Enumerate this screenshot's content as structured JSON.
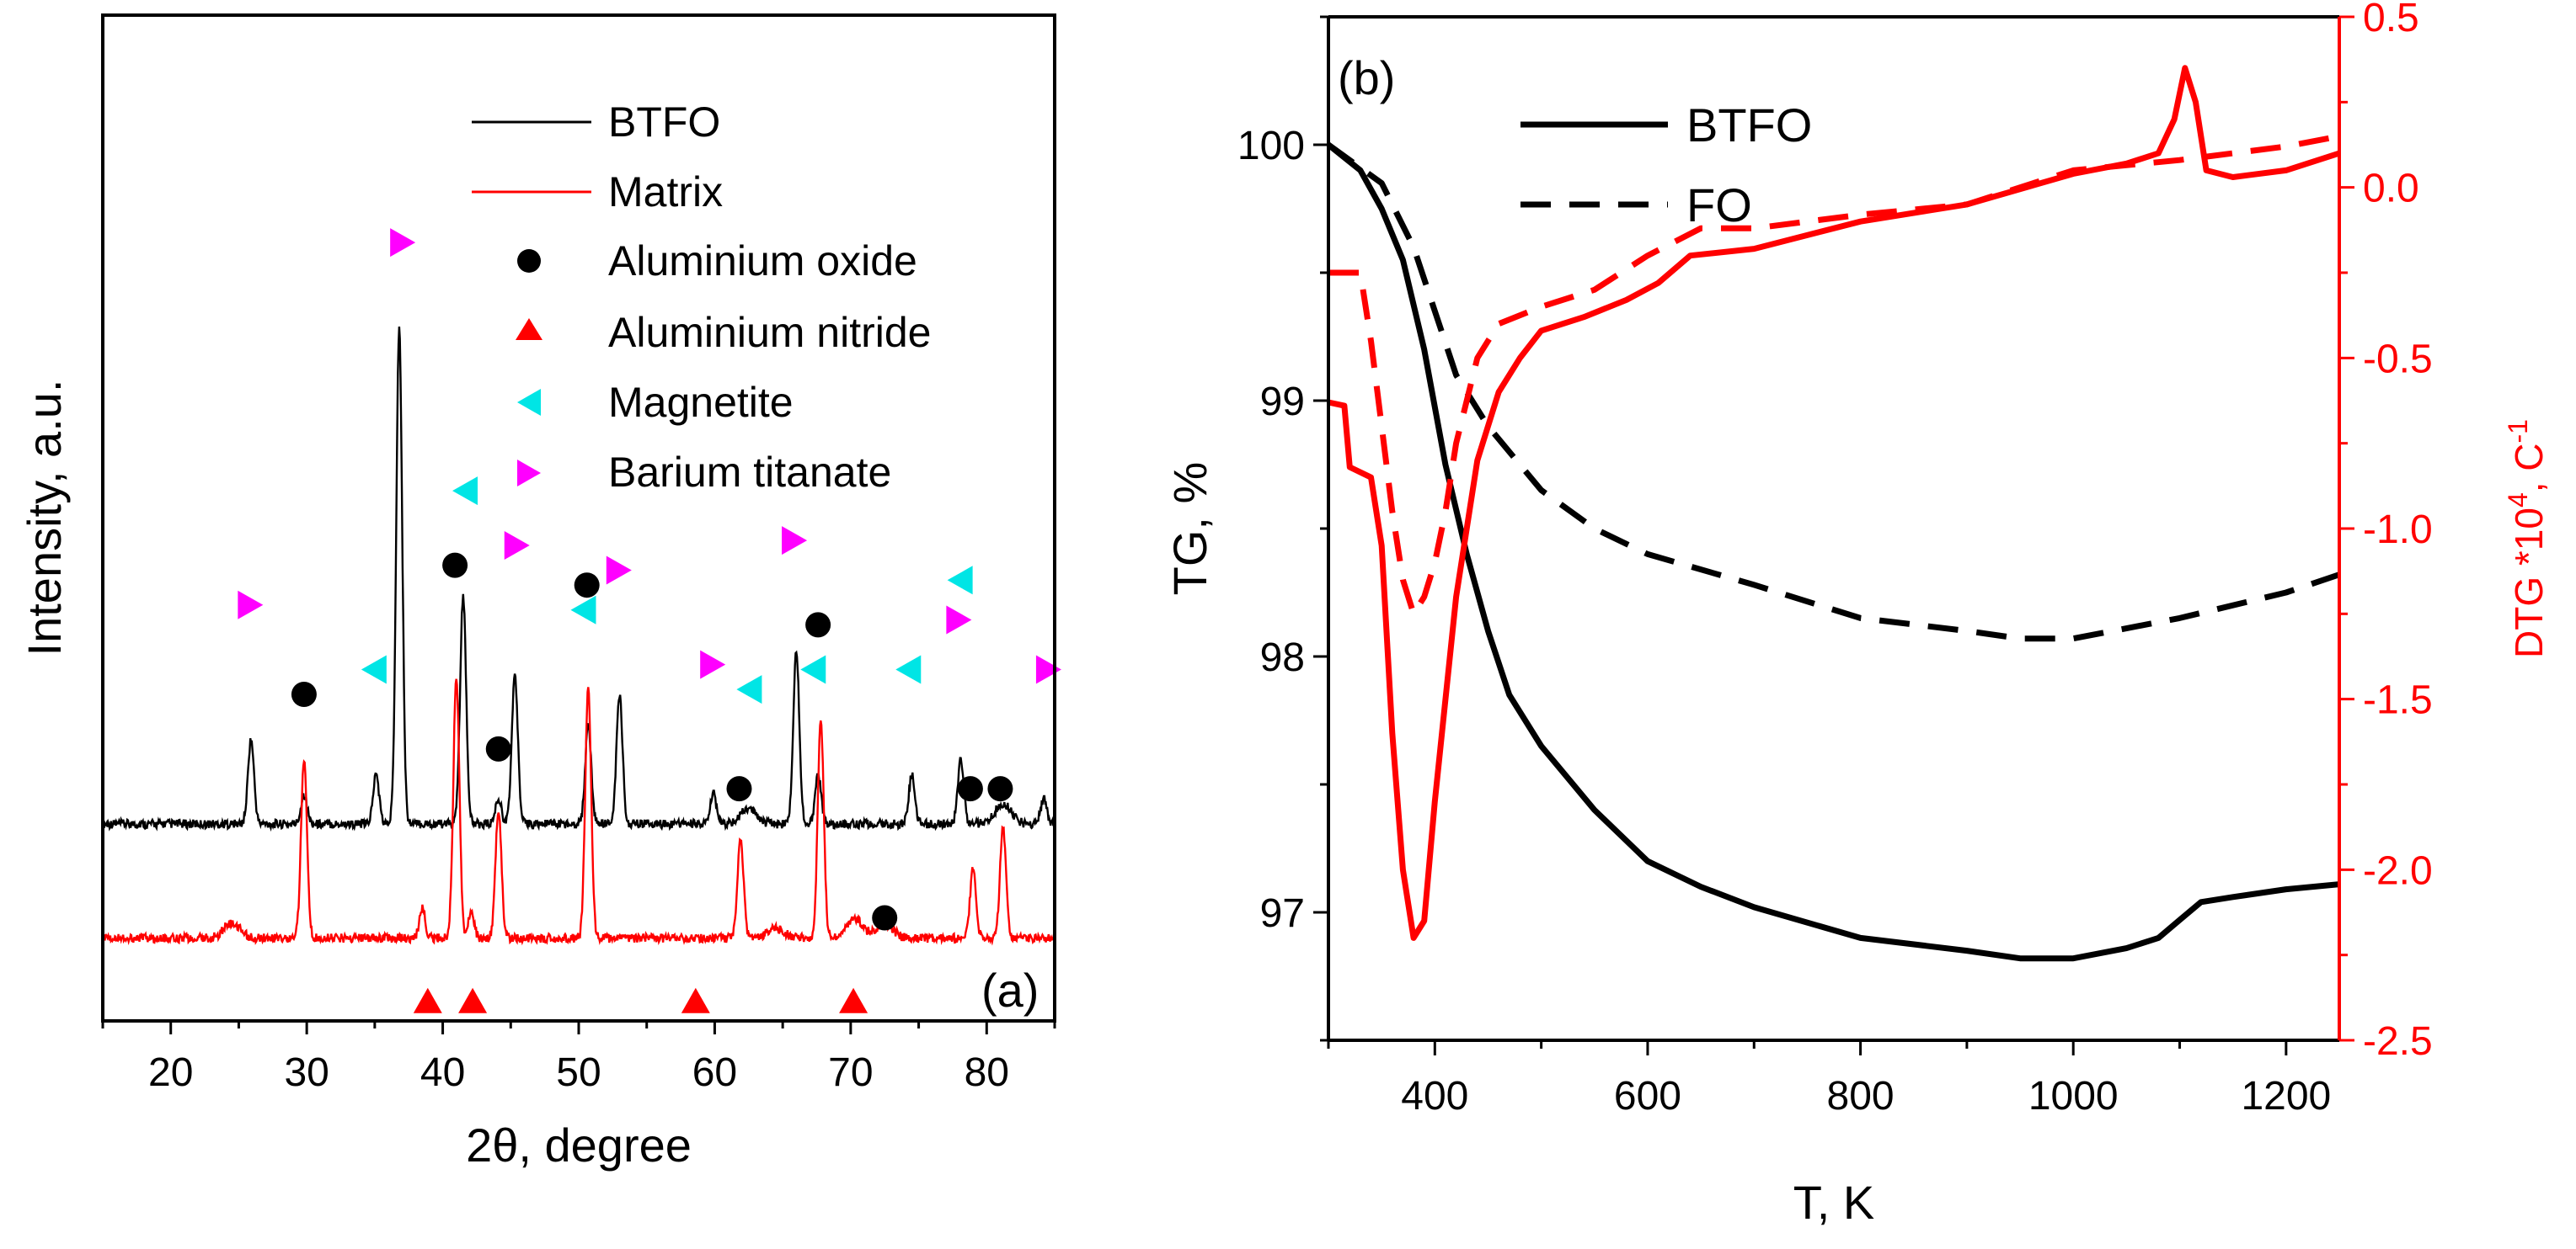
{
  "chart_data": [
    {
      "type": "line",
      "panel_label": "(a)",
      "xlabel": "2θ, degree",
      "ylabel": "Intensity, a.u.",
      "xlim": [
        15,
        85
      ],
      "xticks": [
        "20",
        "30",
        "40",
        "50",
        "60",
        "70",
        "80"
      ],
      "yticks": [],
      "legend": {
        "position": "top-right",
        "entries": [
          {
            "label": "BTFO",
            "kind": "line",
            "color": "#000000"
          },
          {
            "label": "Matrix",
            "kind": "line",
            "color": "#ff0000"
          },
          {
            "label": "Aluminium oxide",
            "kind": "circle",
            "color": "#000000"
          },
          {
            "label": "Aluminium nitride",
            "kind": "triangle-up",
            "color": "#ff0000"
          },
          {
            "label": "Magnetite",
            "kind": "triangle-left",
            "color": "#00e5e5"
          },
          {
            "label": "Barium titanate",
            "kind": "triangle-right",
            "color": "#ff00ff"
          }
        ]
      },
      "series": [
        {
          "name": "BTFO",
          "color": "#000000",
          "baseline": 0.23,
          "peaks": [
            [
              25.9,
              0.17
            ],
            [
              29.8,
              0.06
            ],
            [
              35.1,
              0.1
            ],
            [
              36.8,
              1.0
            ],
            [
              41.5,
              0.46
            ],
            [
              44.1,
              0.05
            ],
            [
              45.3,
              0.3
            ],
            [
              50.7,
              0.2
            ],
            [
              53.0,
              0.26
            ],
            [
              59.9,
              0.06
            ],
            [
              62.5,
              0.03
            ],
            [
              66.0,
              0.35
            ],
            [
              67.6,
              0.1
            ],
            [
              74.5,
              0.1
            ],
            [
              78.1,
              0.13
            ],
            [
              81.2,
              0.04
            ],
            [
              84.2,
              0.05
            ]
          ]
        },
        {
          "name": "Matrix",
          "color": "#ff0000",
          "baseline": 0.0,
          "peaks": [
            [
              24.5,
              0.03
            ],
            [
              29.8,
              0.36
            ],
            [
              38.5,
              0.06
            ],
            [
              41.0,
              0.53
            ],
            [
              42.1,
              0.05
            ],
            [
              44.1,
              0.26
            ],
            [
              50.7,
              0.5
            ],
            [
              61.9,
              0.2
            ],
            [
              64.5,
              0.02
            ],
            [
              67.8,
              0.44
            ],
            [
              70.3,
              0.04
            ],
            [
              72.5,
              0.03
            ],
            [
              79.0,
              0.14
            ],
            [
              81.2,
              0.22
            ]
          ]
        }
      ],
      "markers": {
        "aluminium_oxide": [
          [
            29.8,
            0.5
          ],
          [
            40.9,
            0.76
          ],
          [
            44.1,
            0.39
          ],
          [
            50.6,
            0.72
          ],
          [
            61.8,
            0.31
          ],
          [
            67.6,
            0.64
          ],
          [
            72.5,
            0.05
          ],
          [
            78.8,
            0.31
          ],
          [
            81.0,
            0.31
          ]
        ],
        "aluminium_nitride": [
          [
            38.9,
            -0.12
          ],
          [
            42.2,
            -0.12
          ],
          [
            58.6,
            -0.12
          ],
          [
            70.2,
            -0.12
          ]
        ],
        "magnetite": [
          [
            35.0,
            0.55
          ],
          [
            41.7,
            0.91
          ],
          [
            50.4,
            0.67
          ],
          [
            62.6,
            0.51
          ],
          [
            67.3,
            0.55
          ],
          [
            74.3,
            0.55
          ],
          [
            78.1,
            0.73
          ]
        ],
        "barium_titanate": [
          [
            25.8,
            0.68
          ],
          [
            37.0,
            1.41
          ],
          [
            45.4,
            0.8
          ],
          [
            52.9,
            0.75
          ],
          [
            59.8,
            0.56
          ],
          [
            65.8,
            0.81
          ],
          [
            77.9,
            0.65
          ],
          [
            84.5,
            0.55
          ]
        ]
      }
    },
    {
      "type": "line",
      "panel_label": "(b)",
      "xlabel": "T, K",
      "ylabel": "TG, %",
      "y2label_base": "DTG *10",
      "y2label_exp": "4",
      "y2label_unit": ", C",
      "y2label_unit_exp": "-1",
      "xlim": [
        300,
        1250
      ],
      "ylim": [
        96.5,
        100.5
      ],
      "y2lim": [
        -2.5,
        0.5
      ],
      "xticks": [
        "400",
        "600",
        "800",
        "1000",
        "1200"
      ],
      "yticks": [
        "97",
        "98",
        "99",
        "100"
      ],
      "y2ticks": [
        "-2.5",
        "-2.0",
        "-1.5",
        "-1.0",
        "-0.5",
        "0.0",
        "0.5"
      ],
      "legend": {
        "position": "top-left",
        "entries": [
          {
            "label": "BTFO",
            "style": "solid"
          },
          {
            "label": "FO",
            "style": "dashed"
          }
        ]
      },
      "series": [
        {
          "name": "BTFO TG",
          "axis": "left",
          "color": "#000000",
          "style": "solid",
          "x": [
            300,
            330,
            350,
            370,
            390,
            410,
            430,
            450,
            470,
            500,
            550,
            600,
            650,
            700,
            800,
            900,
            950,
            1000,
            1050,
            1080,
            1100,
            1120,
            1150,
            1200,
            1250
          ],
          "y": [
            100.0,
            99.9,
            99.75,
            99.55,
            99.2,
            98.75,
            98.4,
            98.1,
            97.85,
            97.65,
            97.4,
            97.2,
            97.1,
            97.02,
            96.9,
            96.85,
            96.82,
            96.82,
            96.86,
            96.9,
            96.97,
            97.04,
            97.06,
            97.09,
            97.11
          ]
        },
        {
          "name": "FO TG",
          "axis": "left",
          "color": "#000000",
          "style": "dashed",
          "x": [
            300,
            350,
            380,
            400,
            420,
            450,
            500,
            550,
            600,
            700,
            800,
            900,
            950,
            1000,
            1100,
            1200,
            1250
          ],
          "y": [
            100.0,
            99.85,
            99.6,
            99.35,
            99.1,
            98.9,
            98.65,
            98.5,
            98.4,
            98.28,
            98.15,
            98.1,
            98.07,
            98.07,
            98.15,
            98.25,
            98.32
          ]
        },
        {
          "name": "BTFO DTG",
          "axis": "right",
          "color": "#ff0000",
          "style": "solid",
          "x": [
            300,
            315,
            320,
            340,
            350,
            360,
            370,
            380,
            390,
            400,
            420,
            440,
            460,
            480,
            500,
            540,
            580,
            610,
            640,
            700,
            800,
            900,
            1000,
            1050,
            1080,
            1095,
            1105,
            1115,
            1125,
            1150,
            1200,
            1250
          ],
          "y": [
            -0.63,
            -0.64,
            -0.82,
            -0.85,
            -1.05,
            -1.6,
            -2.0,
            -2.2,
            -2.15,
            -1.8,
            -1.2,
            -0.8,
            -0.6,
            -0.5,
            -0.42,
            -0.38,
            -0.33,
            -0.28,
            -0.2,
            -0.18,
            -0.1,
            -0.05,
            0.04,
            0.07,
            0.1,
            0.2,
            0.35,
            0.25,
            0.05,
            0.03,
            0.05,
            0.1
          ]
        },
        {
          "name": "FO DTG",
          "axis": "right",
          "color": "#ff0000",
          "style": "dashed",
          "x": [
            300,
            330,
            340,
            350,
            360,
            370,
            380,
            390,
            400,
            410,
            420,
            440,
            460,
            500,
            550,
            600,
            650,
            700,
            800,
            900,
            1000,
            1100,
            1200,
            1250
          ],
          "y": [
            -0.25,
            -0.25,
            -0.45,
            -0.7,
            -0.95,
            -1.15,
            -1.25,
            -1.2,
            -1.1,
            -0.95,
            -0.75,
            -0.5,
            -0.4,
            -0.35,
            -0.3,
            -0.2,
            -0.12,
            -0.12,
            -0.08,
            -0.05,
            0.05,
            0.08,
            0.12,
            0.15
          ]
        }
      ]
    }
  ]
}
